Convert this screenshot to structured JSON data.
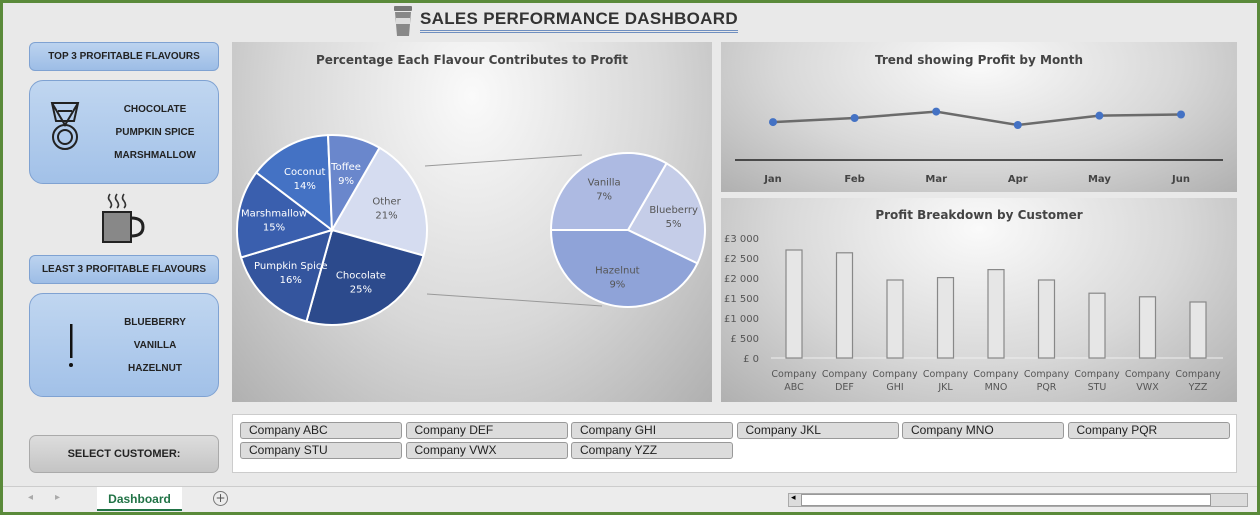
{
  "header": {
    "title": "SALES PERFORMANCE DASHBOARD",
    "icon": "coffee-cup-icon"
  },
  "left": {
    "top_label": "TOP 3 PROFITABLE FLAVOURS",
    "top_items": [
      "CHOCOLATE",
      "PUMPKIN SPICE",
      "MARSHMALLOW"
    ],
    "top_icon": "medal-icon",
    "mid_icon": "hot-mug-icon",
    "least_label": "LEAST 3 PROFITABLE FLAVOURS",
    "least_items": [
      "BLUEBERRY",
      "VANILLA",
      "HAZELNUT"
    ],
    "least_icon": "exclamation-icon"
  },
  "slicer": {
    "label": "SELECT CUSTOMER:",
    "items": [
      "Company ABC",
      "Company DEF",
      "Company GHI",
      "Company JKL",
      "Company MNO",
      "Company PQR",
      "Company STU",
      "Company VWX",
      "Company YZZ"
    ]
  },
  "sheet": {
    "tab": "Dashboard"
  },
  "chart_data": [
    {
      "type": "pie",
      "title": "Percentage Each Flavour Contributes to Profit",
      "subtype": "pie-of-pie",
      "main": [
        {
          "label": "Other",
          "value": 21,
          "color": "#d5dcf0"
        },
        {
          "label": "Chocolate",
          "value": 25,
          "color": "#2c4a8c"
        },
        {
          "label": "Pumpkin Spice",
          "value": 16,
          "color": "#34559e"
        },
        {
          "label": "Marshmallow",
          "value": 15,
          "color": "#3a5fae"
        },
        {
          "label": "Coconut",
          "value": 14,
          "color": "#4472c4"
        },
        {
          "label": "Toffee",
          "value": 9,
          "color": "#6a87cc"
        }
      ],
      "secondary": [
        {
          "label": "Blueberry",
          "value": 5,
          "color": "#c5cde8"
        },
        {
          "label": "Hazelnut",
          "value": 9,
          "color": "#8fa3d8"
        },
        {
          "label": "Vanilla",
          "value": 7,
          "color": "#adbae2"
        }
      ]
    },
    {
      "type": "line",
      "title": "Trend showing Profit by Month",
      "categories": [
        "Jan",
        "Feb",
        "Mar",
        "Apr",
        "May",
        "Jun"
      ],
      "values": [
        2650,
        2720,
        2830,
        2600,
        2760,
        2780
      ],
      "color": "#4472c4"
    },
    {
      "type": "bar",
      "title": "Profit Breakdown by Customer",
      "categories": [
        "Company ABC",
        "Company DEF",
        "Company GHI",
        "Company JKL",
        "Company MNO",
        "Company PQR",
        "Company STU",
        "Company VWX",
        "Company YZZ"
      ],
      "values": [
        2700,
        2630,
        1950,
        2010,
        2210,
        1950,
        1620,
        1530,
        1400
      ],
      "ylim": [
        0,
        3000
      ],
      "yticks": [
        "£ 0",
        "£ 500",
        "£1 000",
        "£1 500",
        "£2 000",
        "£2 500",
        "£3 000"
      ]
    }
  ]
}
